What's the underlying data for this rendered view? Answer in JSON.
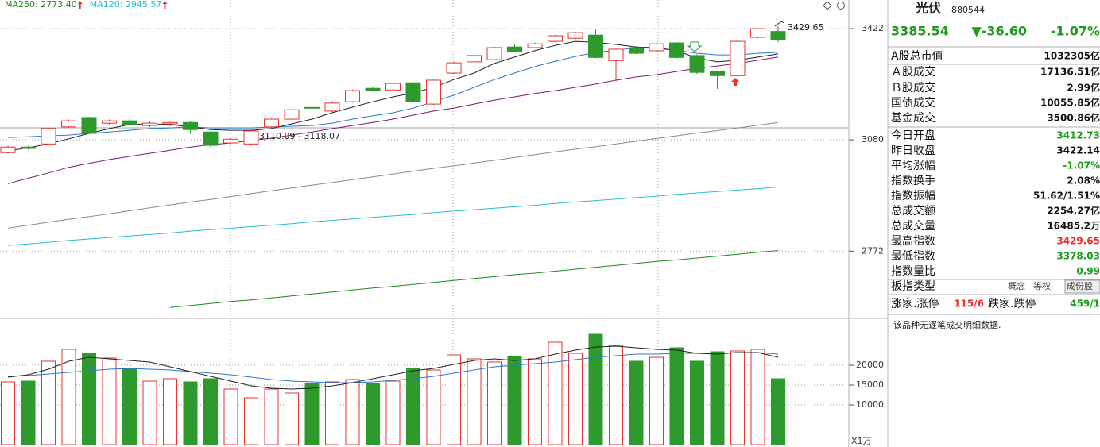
{
  "chart_data": [
    {
      "type": "candlestick",
      "log": true,
      "ylim": [
        2603,
        3516
      ],
      "yticks": [
        2772,
        3080,
        3422
      ],
      "grid": true,
      "up_color": "#e8302e",
      "down_color": "#2e9a2e",
      "open": [
        3043,
        3059,
        3068,
        3118,
        3146,
        3129,
        3136,
        3122,
        3127,
        3131,
        3103,
        3071,
        3068,
        3118,
        3141,
        3176,
        3165,
        3193,
        3234,
        3229,
        3251,
        3186,
        3281,
        3316,
        3323,
        3363,
        3361,
        3381,
        3391,
        3401,
        3320,
        3361,
        3351,
        3376,
        3336,
        3286,
        3273,
        3394,
        3412.73
      ],
      "high": [
        3063,
        3062,
        3116,
        3140,
        3148,
        3140,
        3141,
        3134,
        3134,
        3134,
        3105,
        3085,
        3110,
        3143,
        3172,
        3180,
        3195,
        3230,
        3237,
        3252,
        3253,
        3261,
        3316,
        3341,
        3364,
        3370,
        3377,
        3402,
        3412,
        3422,
        3358,
        3366,
        3376,
        3378,
        3340,
        3288,
        3384,
        3424,
        3429.65
      ],
      "low": [
        3040,
        3052,
        3065,
        3115,
        3097,
        3125,
        3121,
        3118,
        3120,
        3098,
        3057,
        3068,
        3063,
        3115,
        3138,
        3170,
        3162,
        3190,
        3224,
        3227,
        3190,
        3183,
        3278,
        3313,
        3320,
        3346,
        3358,
        3378,
        3388,
        3327,
        3256,
        3340,
        3348,
        3327,
        3278,
        3232,
        3270,
        3391,
        3378.03
      ],
      "close": [
        3059,
        3055,
        3113,
        3136,
        3099,
        3136,
        3124,
        3129,
        3131,
        3110,
        3064,
        3082,
        3106,
        3141,
        3169,
        3174,
        3189,
        3227,
        3227,
        3249,
        3193,
        3259,
        3313,
        3336,
        3361,
        3348,
        3373,
        3399,
        3409,
        3330,
        3356,
        3343,
        3373,
        3330,
        3283,
        3273,
        3381,
        3422,
        3385.54
      ],
      "series": [
        {
          "name": "MA250: 2773.40",
          "color": "#1c8a1c",
          "values": [
            null,
            null,
            null,
            null,
            null,
            null,
            null,
            null,
            2628,
            2633,
            2638,
            2643,
            2647,
            2652,
            2657,
            2662,
            2667,
            2672,
            2677,
            2681,
            2686,
            2691,
            2696,
            2701,
            2706,
            2711,
            2715,
            2720,
            2725,
            2730,
            2735,
            2740,
            2745,
            2749,
            2754,
            2759,
            2764,
            2769,
            2773.4
          ]
        },
        {
          "name": "MA120: 2945.57",
          "color": "#22bfd0",
          "values": [
            2787,
            2791,
            2795,
            2800,
            2804,
            2808,
            2812,
            2816,
            2820,
            2825,
            2829,
            2833,
            2837,
            2841,
            2845,
            2850,
            2854,
            2858,
            2862,
            2866,
            2870,
            2875,
            2879,
            2883,
            2887,
            2891,
            2895,
            2900,
            2904,
            2908,
            2912,
            2916,
            2920,
            2925,
            2929,
            2933,
            2937,
            2941,
            2945.57
          ]
        },
        {
          "color": "#8a8a8a",
          "values": [
            2833,
            2841,
            2849,
            2857,
            2864,
            2872,
            2880,
            2888,
            2896,
            2904,
            2911,
            2919,
            2927,
            2935,
            2943,
            2951,
            2958,
            2966,
            2974,
            2982,
            2990,
            2998,
            3005,
            3013,
            3021,
            3029,
            3037,
            3045,
            3053,
            3060,
            3068,
            3076,
            3084,
            3092,
            3100,
            3107,
            3115,
            3123,
            3131
          ]
        },
        {
          "color": "#7a1a78",
          "values": [
            2955,
            2970,
            2985,
            3001,
            3012,
            3023,
            3032,
            3041,
            3050,
            3059,
            3066,
            3071,
            3078,
            3085,
            3094,
            3103,
            3113,
            3122,
            3131,
            3141,
            3153,
            3165,
            3174,
            3186,
            3198,
            3208,
            3218,
            3227,
            3237,
            3247,
            3259,
            3269,
            3276,
            3286,
            3296,
            3303,
            3311,
            3321,
            3331
          ]
        },
        {
          "color": "#2a78d0",
          "values": [
            3087,
            3089,
            3092,
            3094,
            3099,
            3103,
            3108,
            3113,
            3115,
            3118,
            3115,
            3115,
            3115,
            3118,
            3120,
            3122,
            3129,
            3141,
            3151,
            3160,
            3174,
            3193,
            3213,
            3237,
            3261,
            3281,
            3301,
            3318,
            3333,
            3346,
            3353,
            3361,
            3358,
            3353,
            3343,
            3338,
            3338,
            3343,
            3346
          ]
        },
        {
          "color": "#222222",
          "values": [
            3048,
            3057,
            3068,
            3083,
            3099,
            3113,
            3125,
            3127,
            3125,
            3118,
            3110,
            3108,
            3108,
            3113,
            3127,
            3141,
            3160,
            3177,
            3193,
            3208,
            3220,
            3237,
            3261,
            3281,
            3311,
            3331,
            3351,
            3368,
            3381,
            3378,
            3371,
            3363,
            3361,
            3351,
            3328,
            3316,
            3321,
            3331,
            3341
          ]
        }
      ],
      "annotations": [
        "3429.65",
        "3110.09 - 3118.07"
      ]
    },
    {
      "type": "bar",
      "ylim": [
        0,
        31400
      ],
      "yticks": [
        20000,
        15000,
        10000
      ],
      "grid": true,
      "unit_label": "X1万",
      "values": [
        15800,
        16000,
        21000,
        24000,
        23000,
        21800,
        19000,
        16000,
        16600,
        15800,
        16600,
        14000,
        11800,
        14000,
        13000,
        15400,
        15800,
        16400,
        15400,
        16000,
        19200,
        18800,
        22600,
        21600,
        20800,
        22200,
        21600,
        25800,
        23000,
        27800,
        25000,
        21000,
        22000,
        24400,
        21000,
        23400,
        23600,
        24000,
        16600
      ],
      "series": [
        {
          "color": "#2a78d0",
          "values": [
            17200,
            17400,
            17800,
            18200,
            18600,
            19000,
            19200,
            19000,
            18800,
            18400,
            18000,
            17600,
            17000,
            16400,
            16000,
            15800,
            15600,
            15600,
            15800,
            16200,
            16600,
            17200,
            18000,
            18800,
            19600,
            20000,
            20400,
            20800,
            21400,
            22000,
            22400,
            22800,
            22800,
            23000,
            23000,
            23000,
            23200,
            23200,
            22800
          ]
        },
        {
          "color": "#222222",
          "values": [
            17000,
            17600,
            19000,
            21000,
            22000,
            21600,
            21200,
            20800,
            19600,
            18400,
            17200,
            16000,
            14800,
            14200,
            14000,
            14200,
            14800,
            15600,
            16600,
            17600,
            18600,
            19200,
            20200,
            21200,
            21600,
            21200,
            21600,
            22800,
            23800,
            24600,
            24800,
            24400,
            24000,
            23800,
            23000,
            22800,
            23200,
            23200,
            22000
          ]
        }
      ]
    }
  ],
  "panel": {
    "name": "光伏",
    "code": "880544",
    "price": "3385.54",
    "change": "▼-36.60",
    "percent": "-1.07%",
    "rows": [
      [
        "A股总市值",
        "1032305亿"
      ],
      [
        "Ａ股成交",
        "17136.51亿"
      ],
      [
        "Ｂ股成交",
        "2.99亿"
      ],
      [
        "国债成交",
        "10055.85亿"
      ],
      [
        "基金成交",
        "3500.86亿"
      ],
      [
        "今日开盘",
        "3412.73"
      ],
      [
        "昨日收盘",
        "3422.14"
      ],
      [
        "平均涨幅",
        "-1.07%"
      ],
      [
        "指数换手",
        "2.08%"
      ],
      [
        "指数振幅",
        "51.62/1.51%"
      ],
      [
        "总成交额",
        "2254.27亿"
      ],
      [
        "总成交量",
        "16485.2万"
      ],
      [
        "最高指数",
        "3429.65"
      ],
      [
        "最低指数",
        "3378.03"
      ],
      [
        "指数量比",
        "0.99"
      ]
    ],
    "type_row": {
      "label": "板指类型",
      "options": [
        "概念",
        "等权",
        "成份股"
      ]
    },
    "breadth": {
      "up_label": "涨家.涨停",
      "up_value": "115/6",
      "down_label": "跌家.跌停",
      "down_value": "459/1"
    },
    "note": "该品种无逐笔成交明细数据."
  }
}
